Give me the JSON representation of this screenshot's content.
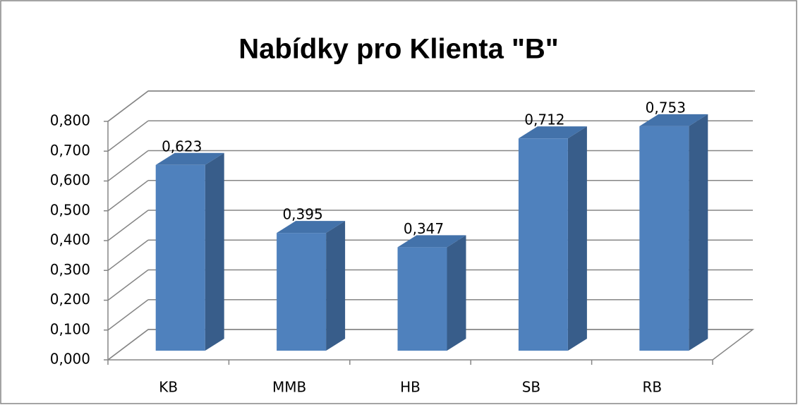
{
  "chart_data": {
    "type": "bar3d",
    "title": "Nabídky pro Klienta \"B\"",
    "categories": [
      "KB",
      "MMB",
      "HB",
      "SB",
      "RB"
    ],
    "values": [
      0.623,
      0.395,
      0.347,
      0.712,
      0.753
    ],
    "value_labels": [
      "0,623",
      "0,395",
      "0,347",
      "0,712",
      "0,753"
    ],
    "color": "#4f81bd",
    "ylim": [
      0,
      0.8
    ],
    "yticks": [
      {
        "value": 0,
        "label": "0,000"
      },
      {
        "value": 0.1,
        "label": "0,100"
      },
      {
        "value": 0.2,
        "label": "0,200"
      },
      {
        "value": 0.3,
        "label": "0,300"
      },
      {
        "value": 0.4,
        "label": "0,400"
      },
      {
        "value": 0.5,
        "label": "0,500"
      },
      {
        "value": 0.6,
        "label": "0,600"
      },
      {
        "value": 0.7,
        "label": "0,700"
      },
      {
        "value": 0.8,
        "label": "0,800"
      }
    ],
    "grid": true
  }
}
